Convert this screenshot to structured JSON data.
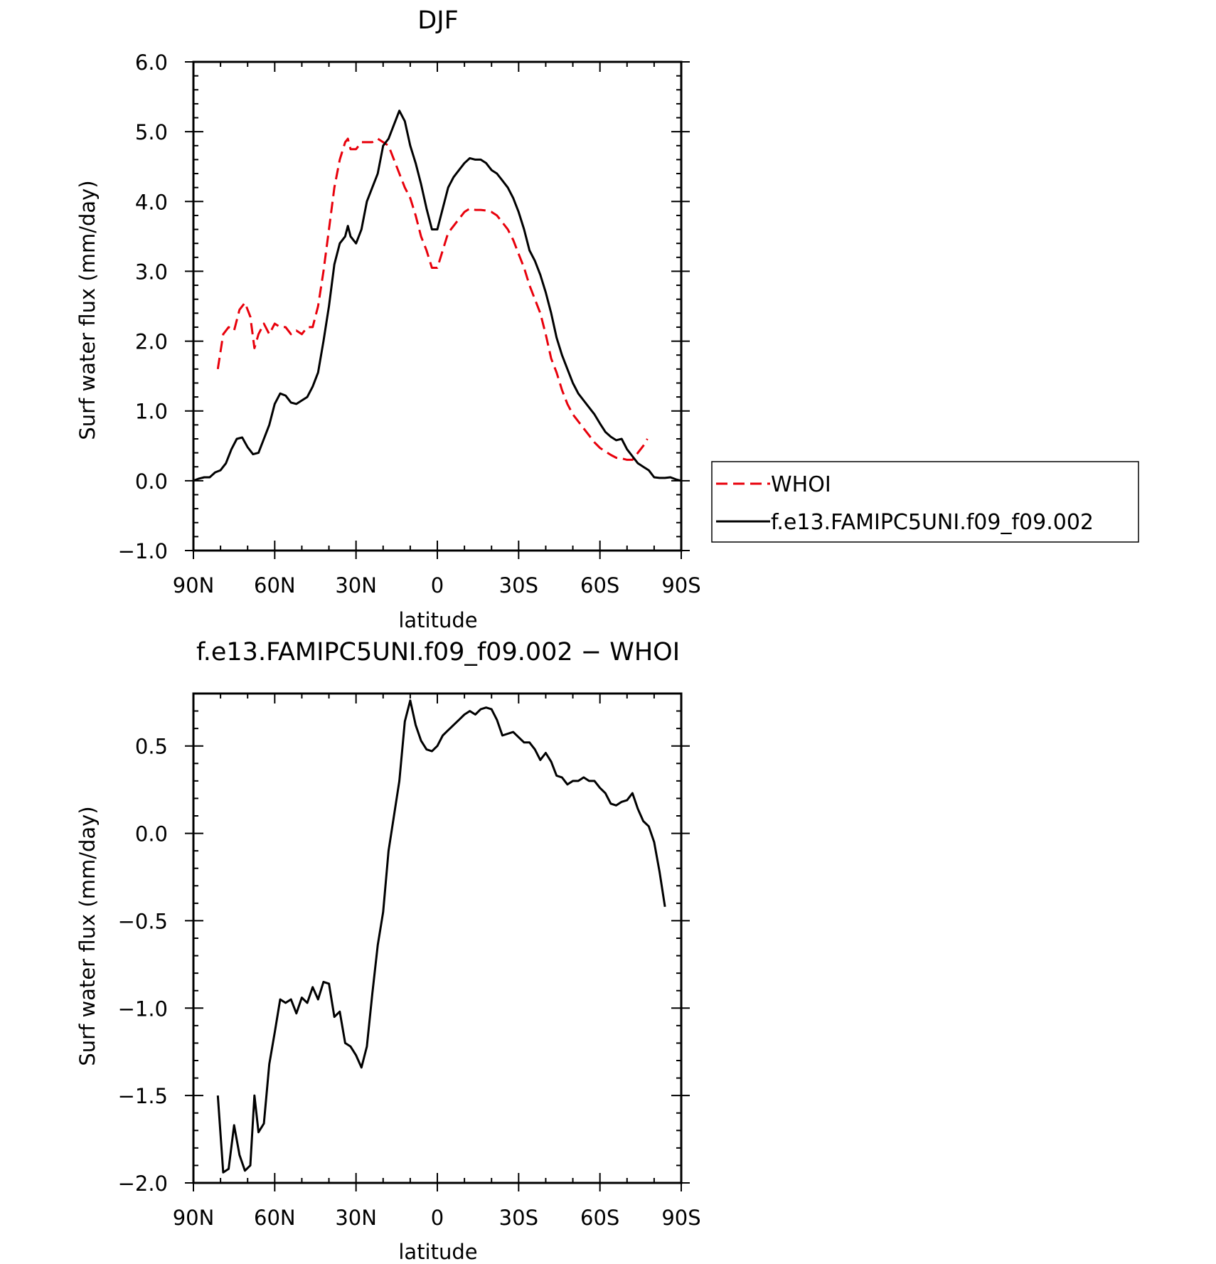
{
  "chart_data": [
    {
      "type": "line",
      "title": "DJF",
      "xlabel": "latitude",
      "ylabel": "Surf water flux (mm/day)",
      "xlim": [
        90,
        -90
      ],
      "ylim": [
        -1.0,
        6.0
      ],
      "xticks": [
        90,
        60,
        30,
        0,
        -30,
        -60,
        -90
      ],
      "xtick_labels": [
        "90N",
        "60N",
        "30N",
        "0",
        "30S",
        "60S",
        "90S"
      ],
      "yticks": [
        -1,
        0,
        1,
        2,
        3,
        4,
        5,
        6
      ],
      "ytick_labels": [
        "−1.0",
        "0.0",
        "1.0",
        "2.0",
        "3.0",
        "4.0",
        "5.0",
        "6.0"
      ],
      "legend": "right",
      "series": [
        {
          "name": "WHOI",
          "color": "#e8000b",
          "style": "dashed",
          "points": [
            [
              81,
              1.6
            ],
            [
              79,
              2.1
            ],
            [
              77,
              2.2
            ],
            [
              75,
              2.15
            ],
            [
              73,
              2.45
            ],
            [
              71,
              2.55
            ],
            [
              69,
              2.35
            ],
            [
              67.5,
              1.9
            ],
            [
              66,
              2.1
            ],
            [
              64,
              2.25
            ],
            [
              62,
              2.1
            ],
            [
              60,
              2.25
            ],
            [
              58,
              2.2
            ],
            [
              56,
              2.2
            ],
            [
              54,
              2.1
            ],
            [
              52,
              2.15
            ],
            [
              50,
              2.1
            ],
            [
              48,
              2.2
            ],
            [
              46,
              2.2
            ],
            [
              44,
              2.5
            ],
            [
              42,
              3.0
            ],
            [
              40,
              3.6
            ],
            [
              38,
              4.2
            ],
            [
              36,
              4.6
            ],
            [
              34,
              4.85
            ],
            [
              33,
              4.9
            ],
            [
              32,
              4.75
            ],
            [
              30,
              4.75
            ],
            [
              28,
              4.85
            ],
            [
              26,
              4.85
            ],
            [
              24,
              4.85
            ],
            [
              22,
              4.9
            ],
            [
              20,
              4.85
            ],
            [
              18,
              4.8
            ],
            [
              16,
              4.6
            ],
            [
              14,
              4.4
            ],
            [
              12,
              4.2
            ],
            [
              10,
              4.05
            ],
            [
              8,
              3.8
            ],
            [
              6,
              3.5
            ],
            [
              4,
              3.3
            ],
            [
              2,
              3.05
            ],
            [
              0,
              3.05
            ],
            [
              -2,
              3.3
            ],
            [
              -4,
              3.55
            ],
            [
              -6,
              3.65
            ],
            [
              -8,
              3.75
            ],
            [
              -10,
              3.85
            ],
            [
              -12,
              3.9
            ],
            [
              -14,
              3.88
            ],
            [
              -16,
              3.88
            ],
            [
              -18,
              3.87
            ],
            [
              -20,
              3.85
            ],
            [
              -22,
              3.8
            ],
            [
              -24,
              3.7
            ],
            [
              -26,
              3.6
            ],
            [
              -28,
              3.45
            ],
            [
              -30,
              3.25
            ],
            [
              -32,
              3.05
            ],
            [
              -34,
              2.8
            ],
            [
              -36,
              2.6
            ],
            [
              -38,
              2.4
            ],
            [
              -40,
              2.1
            ],
            [
              -42,
              1.75
            ],
            [
              -44,
              1.55
            ],
            [
              -46,
              1.3
            ],
            [
              -48,
              1.1
            ],
            [
              -50,
              0.95
            ],
            [
              -52,
              0.85
            ],
            [
              -54,
              0.75
            ],
            [
              -56,
              0.65
            ],
            [
              -58,
              0.55
            ],
            [
              -60,
              0.47
            ],
            [
              -62,
              0.42
            ],
            [
              -64,
              0.37
            ],
            [
              -66,
              0.33
            ],
            [
              -68,
              0.32
            ],
            [
              -70,
              0.3
            ],
            [
              -72,
              0.3
            ],
            [
              -74,
              0.4
            ],
            [
              -76,
              0.5
            ],
            [
              -77.5,
              0.6
            ]
          ]
        },
        {
          "name": "f.e13.FAMIPC5UNI.f09_f09.002",
          "color": "#000000",
          "style": "solid",
          "points": [
            [
              90,
              0.0
            ],
            [
              88,
              0.03
            ],
            [
              86,
              0.05
            ],
            [
              84,
              0.05
            ],
            [
              82,
              0.12
            ],
            [
              80,
              0.15
            ],
            [
              78,
              0.25
            ],
            [
              76,
              0.45
            ],
            [
              74,
              0.6
            ],
            [
              72,
              0.62
            ],
            [
              70,
              0.48
            ],
            [
              68,
              0.38
            ],
            [
              66,
              0.4
            ],
            [
              64,
              0.6
            ],
            [
              62,
              0.8
            ],
            [
              60,
              1.1
            ],
            [
              58,
              1.25
            ],
            [
              56,
              1.22
            ],
            [
              54,
              1.12
            ],
            [
              52,
              1.1
            ],
            [
              50,
              1.15
            ],
            [
              48,
              1.2
            ],
            [
              46,
              1.35
            ],
            [
              44,
              1.55
            ],
            [
              42,
              2.0
            ],
            [
              40,
              2.5
            ],
            [
              38,
              3.1
            ],
            [
              36,
              3.4
            ],
            [
              34,
              3.5
            ],
            [
              33,
              3.65
            ],
            [
              32,
              3.5
            ],
            [
              30,
              3.4
            ],
            [
              28,
              3.6
            ],
            [
              26,
              4.0
            ],
            [
              24,
              4.2
            ],
            [
              22,
              4.4
            ],
            [
              20,
              4.8
            ],
            [
              18,
              4.9
            ],
            [
              16,
              5.1
            ],
            [
              14,
              5.3
            ],
            [
              12,
              5.15
            ],
            [
              10,
              4.8
            ],
            [
              8,
              4.55
            ],
            [
              6,
              4.25
            ],
            [
              4,
              3.9
            ],
            [
              2,
              3.6
            ],
            [
              0,
              3.6
            ],
            [
              -2,
              3.9
            ],
            [
              -4,
              4.2
            ],
            [
              -6,
              4.35
            ],
            [
              -8,
              4.45
            ],
            [
              -10,
              4.55
            ],
            [
              -12,
              4.62
            ],
            [
              -14,
              4.6
            ],
            [
              -16,
              4.6
            ],
            [
              -18,
              4.55
            ],
            [
              -20,
              4.45
            ],
            [
              -22,
              4.4
            ],
            [
              -24,
              4.3
            ],
            [
              -26,
              4.2
            ],
            [
              -28,
              4.05
            ],
            [
              -30,
              3.85
            ],
            [
              -32,
              3.6
            ],
            [
              -34,
              3.3
            ],
            [
              -36,
              3.15
            ],
            [
              -38,
              2.95
            ],
            [
              -40,
              2.7
            ],
            [
              -42,
              2.4
            ],
            [
              -44,
              2.05
            ],
            [
              -46,
              1.8
            ],
            [
              -48,
              1.6
            ],
            [
              -50,
              1.4
            ],
            [
              -52,
              1.25
            ],
            [
              -54,
              1.15
            ],
            [
              -56,
              1.05
            ],
            [
              -58,
              0.95
            ],
            [
              -60,
              0.82
            ],
            [
              -62,
              0.7
            ],
            [
              -64,
              0.63
            ],
            [
              -66,
              0.58
            ],
            [
              -68,
              0.6
            ],
            [
              -70,
              0.45
            ],
            [
              -72,
              0.35
            ],
            [
              -74,
              0.25
            ],
            [
              -76,
              0.2
            ],
            [
              -78,
              0.15
            ],
            [
              -80,
              0.05
            ],
            [
              -82,
              0.04
            ],
            [
              -84,
              0.04
            ],
            [
              -86,
              0.05
            ],
            [
              -88,
              0.02
            ],
            [
              -90,
              0.0
            ]
          ]
        }
      ]
    },
    {
      "type": "line",
      "title": "f.e13.FAMIPC5UNI.f09_f09.002 − WHOI",
      "xlabel": "latitude",
      "ylabel": "Surf water flux (mm/day)",
      "xlim": [
        90,
        -90
      ],
      "ylim": [
        -2.0,
        0.8
      ],
      "xticks": [
        90,
        60,
        30,
        0,
        -30,
        -60,
        -90
      ],
      "xtick_labels": [
        "90N",
        "60N",
        "30N",
        "0",
        "30S",
        "60S",
        "90S"
      ],
      "yticks": [
        -2.0,
        -1.5,
        -1.0,
        -0.5,
        0.0,
        0.5
      ],
      "ytick_labels": [
        "−2.0",
        "−1.5",
        "−1.0",
        "−0.5",
        "0.0",
        "0.5"
      ],
      "series": [
        {
          "color": "#000000",
          "style": "solid",
          "points": [
            [
              81,
              -1.5
            ],
            [
              79,
              -1.94
            ],
            [
              77,
              -1.92
            ],
            [
              75,
              -1.67
            ],
            [
              73,
              -1.84
            ],
            [
              71,
              -1.93
            ],
            [
              69,
              -1.9
            ],
            [
              67.5,
              -1.5
            ],
            [
              66,
              -1.71
            ],
            [
              64,
              -1.66
            ],
            [
              62,
              -1.32
            ],
            [
              60,
              -1.14
            ],
            [
              58,
              -0.95
            ],
            [
              56,
              -0.97
            ],
            [
              54,
              -0.95
            ],
            [
              52,
              -1.03
            ],
            [
              50,
              -0.94
            ],
            [
              48,
              -0.97
            ],
            [
              46,
              -0.88
            ],
            [
              44,
              -0.95
            ],
            [
              42,
              -0.85
            ],
            [
              40,
              -0.86
            ],
            [
              38,
              -1.05
            ],
            [
              36,
              -1.02
            ],
            [
              34,
              -1.2
            ],
            [
              32,
              -1.22
            ],
            [
              30,
              -1.27
            ],
            [
              28,
              -1.34
            ],
            [
              26,
              -1.22
            ],
            [
              24,
              -0.92
            ],
            [
              22,
              -0.64
            ],
            [
              20,
              -0.45
            ],
            [
              18,
              -0.1
            ],
            [
              16,
              0.1
            ],
            [
              14,
              0.3
            ],
            [
              12,
              0.64
            ],
            [
              10,
              0.76
            ],
            [
              8,
              0.62
            ],
            [
              6,
              0.53
            ],
            [
              4,
              0.48
            ],
            [
              2,
              0.47
            ],
            [
              0,
              0.5
            ],
            [
              -2,
              0.56
            ],
            [
              -4,
              0.59
            ],
            [
              -6,
              0.62
            ],
            [
              -8,
              0.65
            ],
            [
              -10,
              0.68
            ],
            [
              -12,
              0.7
            ],
            [
              -14,
              0.68
            ],
            [
              -16,
              0.71
            ],
            [
              -18,
              0.72
            ],
            [
              -20,
              0.71
            ],
            [
              -22,
              0.65
            ],
            [
              -24,
              0.56
            ],
            [
              -26,
              0.57
            ],
            [
              -28,
              0.58
            ],
            [
              -30,
              0.55
            ],
            [
              -32,
              0.52
            ],
            [
              -34,
              0.52
            ],
            [
              -36,
              0.48
            ],
            [
              -38,
              0.42
            ],
            [
              -40,
              0.46
            ],
            [
              -42,
              0.41
            ],
            [
              -44,
              0.33
            ],
            [
              -46,
              0.32
            ],
            [
              -48,
              0.28
            ],
            [
              -50,
              0.3
            ],
            [
              -52,
              0.3
            ],
            [
              -54,
              0.32
            ],
            [
              -56,
              0.3
            ],
            [
              -58,
              0.3
            ],
            [
              -60,
              0.26
            ],
            [
              -62,
              0.23
            ],
            [
              -64,
              0.17
            ],
            [
              -66,
              0.16
            ],
            [
              -68,
              0.18
            ],
            [
              -70,
              0.19
            ],
            [
              -72,
              0.23
            ],
            [
              -74,
              0.14
            ],
            [
              -76,
              0.07
            ],
            [
              -78,
              0.04
            ],
            [
              -80,
              -0.05
            ],
            [
              -82,
              -0.22
            ],
            [
              -84,
              -0.42
            ]
          ]
        }
      ]
    }
  ]
}
